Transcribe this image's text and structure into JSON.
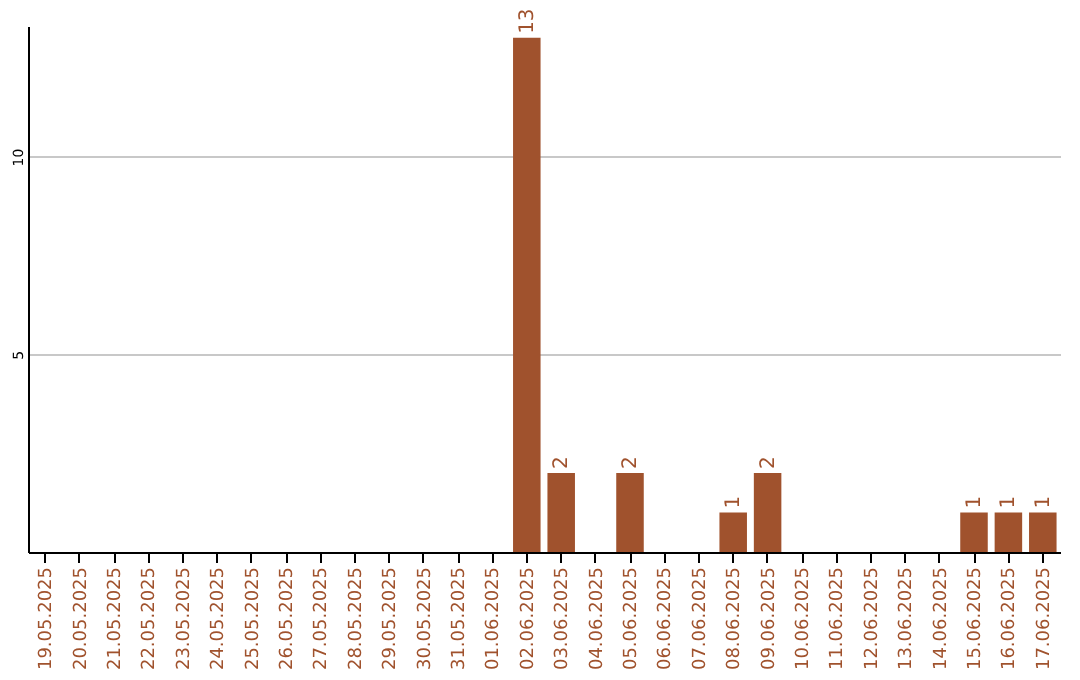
{
  "chart_data": {
    "type": "bar",
    "categories": [
      "19.05.2025",
      "20.05.2025",
      "21.05.2025",
      "22.05.2025",
      "23.05.2025",
      "24.05.2025",
      "25.05.2025",
      "26.05.2025",
      "27.05.2025",
      "28.05.2025",
      "29.05.2025",
      "30.05.2025",
      "31.05.2025",
      "01.06.2025",
      "02.06.2025",
      "03.06.2025",
      "04.06.2025",
      "05.06.2025",
      "06.06.2025",
      "07.06.2025",
      "08.06.2025",
      "09.06.2025",
      "10.06.2025",
      "11.06.2025",
      "12.06.2025",
      "13.06.2025",
      "14.06.2025",
      "15.06.2025",
      "16.06.2025",
      "17.06.2025"
    ],
    "values": [
      0,
      0,
      0,
      0,
      0,
      0,
      0,
      0,
      0,
      0,
      0,
      0,
      0,
      0,
      13,
      2,
      0,
      2,
      0,
      0,
      1,
      2,
      0,
      0,
      0,
      0,
      0,
      1,
      1,
      1
    ],
    "value_labels": [
      null,
      null,
      null,
      null,
      null,
      null,
      null,
      null,
      null,
      null,
      null,
      null,
      null,
      null,
      "13",
      "2",
      null,
      "2",
      null,
      null,
      "1",
      "2",
      null,
      null,
      null,
      null,
      null,
      "1",
      "1",
      "1"
    ],
    "color": "#a0522d",
    "ylim": [
      0,
      13.3
    ],
    "yticks": [
      5,
      10
    ],
    "grid": "y"
  }
}
